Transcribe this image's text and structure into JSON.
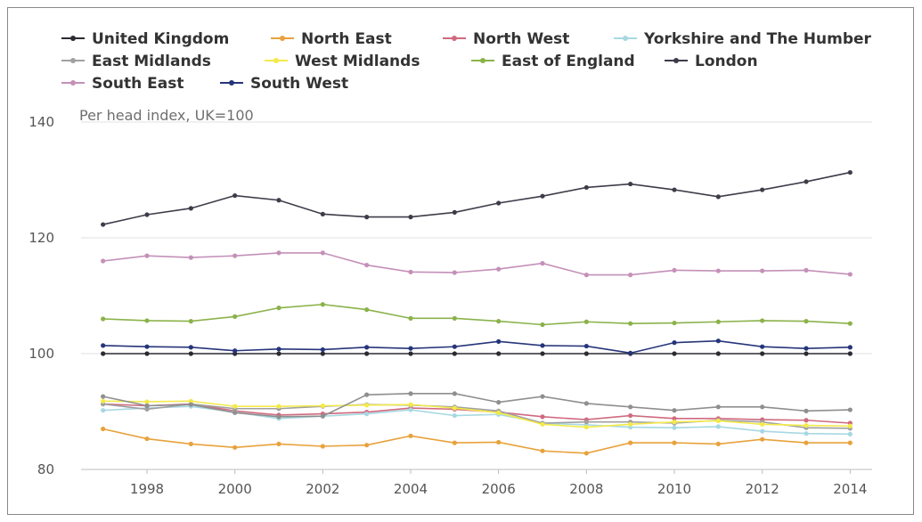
{
  "chart_data": {
    "type": "line",
    "title": "",
    "unit_label": "Per head index, UK=100",
    "x": [
      1997,
      1998,
      1999,
      2000,
      2001,
      2002,
      2003,
      2004,
      2005,
      2006,
      2007,
      2008,
      2009,
      2010,
      2011,
      2012,
      2013,
      2014
    ],
    "x_ticks": [
      "1998",
      "2000",
      "2002",
      "2004",
      "2006",
      "2008",
      "2010",
      "2012",
      "2014"
    ],
    "y_ticks": [
      "80",
      "100",
      "120",
      "140"
    ],
    "ylim": [
      80,
      140
    ],
    "xlim": [
      1996.5,
      2014.5
    ],
    "grid": "horizontal",
    "legend_position": "top",
    "series": [
      {
        "name": "United Kingdom",
        "color": "#2b2b33",
        "values": [
          100,
          100,
          100,
          100,
          100,
          100,
          100,
          100,
          100,
          100,
          100,
          100,
          100,
          100,
          100,
          100,
          100,
          100
        ]
      },
      {
        "name": "North East",
        "color": "#e8a23c",
        "values": [
          87.0,
          85.3,
          84.4,
          83.8,
          84.4,
          84.0,
          84.2,
          85.8,
          84.6,
          84.7,
          83.2,
          82.8,
          84.6,
          84.6,
          84.4,
          85.2,
          84.6,
          84.6
        ]
      },
      {
        "name": "North West",
        "color": "#d06a7f",
        "values": [
          91.3,
          91.0,
          91.3,
          90.1,
          89.4,
          89.6,
          89.9,
          90.6,
          90.4,
          89.9,
          89.1,
          88.6,
          89.3,
          88.8,
          88.8,
          88.6,
          88.5,
          88.0
        ]
      },
      {
        "name": "Yorkshire and The Humber",
        "color": "#a7d8e2",
        "values": [
          90.2,
          90.6,
          90.9,
          89.9,
          88.8,
          89.2,
          89.6,
          90.3,
          89.3,
          89.5,
          88.0,
          87.7,
          87.3,
          87.2,
          87.4,
          86.6,
          86.2,
          86.1
        ]
      },
      {
        "name": "East Midlands",
        "color": "#a0a0a0",
        "values": [
          91.3,
          90.4,
          91.3,
          90.5,
          90.5,
          90.9,
          91.2,
          91.1,
          90.8,
          90.1,
          88.0,
          88.2,
          88.2,
          88.0,
          88.5,
          88.2,
          87.2,
          87.1
        ]
      },
      {
        "name": "West Midlands",
        "color": "#f3ea4a",
        "values": [
          91.8,
          91.7,
          91.8,
          90.9,
          90.9,
          91.0,
          91.1,
          91.2,
          90.6,
          89.8,
          87.8,
          87.3,
          87.8,
          88.2,
          88.4,
          87.8,
          87.6,
          87.5
        ]
      },
      {
        "name": "East of England",
        "color": "#8bb24a",
        "values": [
          106.0,
          105.7,
          105.6,
          106.4,
          107.9,
          108.5,
          107.6,
          106.1,
          106.1,
          105.6,
          105.0,
          105.5,
          105.2,
          105.3,
          105.5,
          105.7,
          105.6,
          105.2
        ]
      },
      {
        "name": "London",
        "color": "#3d3d4a",
        "values": [
          122.3,
          124.0,
          125.1,
          127.3,
          126.5,
          124.1,
          123.6,
          123.6,
          124.4,
          126.0,
          127.2,
          128.7,
          129.3,
          128.3,
          127.1,
          128.3,
          129.7,
          131.3
        ]
      },
      {
        "name": "South East",
        "color": "#c490b8",
        "values": [
          116.0,
          116.9,
          116.6,
          116.9,
          117.4,
          117.4,
          115.3,
          114.1,
          114.0,
          114.6,
          115.6,
          113.6,
          113.6,
          114.4,
          114.3,
          114.3,
          114.4,
          113.7
        ]
      },
      {
        "name": "South West",
        "color": "#26357a",
        "values": [
          101.4,
          101.2,
          101.1,
          100.5,
          100.8,
          100.7,
          101.1,
          100.9,
          101.2,
          102.1,
          101.4,
          101.3,
          100.1,
          101.9,
          102.2,
          101.2,
          100.9,
          101.1
        ]
      },
      {
        "name": "",
        "color": "#8f8f8f",
        "values": [
          92.6,
          91.0,
          91.2,
          89.8,
          89.1,
          89.2,
          92.9,
          93.1,
          93.1,
          91.6,
          92.6,
          91.4,
          90.8,
          90.2,
          90.8,
          90.8,
          90.1,
          90.3
        ]
      }
    ]
  }
}
